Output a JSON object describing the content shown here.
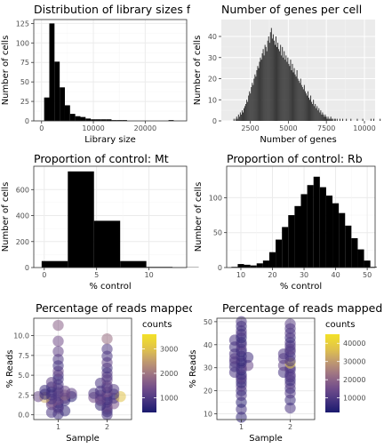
{
  "chart_data": [
    {
      "type": "bar",
      "title": "Distribution of library sizes for all",
      "xlabel": "Library size",
      "ylabel": "Number of cells",
      "theme": "bw",
      "xlim": [
        -1500,
        28000
      ],
      "ylim": [
        0,
        130
      ],
      "xticks": [
        0,
        10000,
        20000
      ],
      "yticks": [
        0,
        25,
        50,
        75,
        100,
        125
      ],
      "bin_width": 1000,
      "bin_start": 500,
      "values": [
        30,
        125,
        76,
        43,
        20,
        9,
        6,
        5,
        3,
        2,
        2,
        2,
        2,
        1,
        1,
        1,
        0,
        0,
        0,
        0,
        0,
        0,
        0,
        0,
        1
      ]
    },
    {
      "type": "bar",
      "title": "Number of genes per cell",
      "xlabel": "Number of genes",
      "ylabel": "Number of cells",
      "theme": "grey",
      "xlim": [
        600,
        10700
      ],
      "ylim": [
        0,
        48
      ],
      "xticks": [
        2500,
        5000,
        7500,
        10000
      ],
      "yticks": [
        0,
        10,
        20,
        30,
        40
      ],
      "bin_width": 60,
      "bin_start": 1400,
      "values": [
        1,
        0,
        1,
        2,
        1,
        3,
        2,
        4,
        3,
        5,
        4,
        6,
        7,
        8,
        10,
        9,
        12,
        14,
        13,
        16,
        18,
        17,
        20,
        22,
        21,
        24,
        26,
        25,
        28,
        30,
        29,
        32,
        34,
        31,
        36,
        35,
        33,
        38,
        40,
        37,
        42,
        44,
        39,
        41,
        38,
        36,
        40,
        35,
        37,
        34,
        33,
        36,
        31,
        35,
        30,
        33,
        29,
        31,
        28,
        30,
        27,
        26,
        29,
        24,
        27,
        23,
        25,
        22,
        21,
        24,
        20,
        19,
        18,
        20,
        17,
        16,
        15,
        17,
        14,
        13,
        12,
        14,
        11,
        10,
        12,
        9,
        8,
        10,
        7,
        8,
        6,
        7,
        5,
        6,
        4,
        5,
        3,
        4,
        3,
        2,
        3,
        2,
        1,
        2,
        1,
        1,
        2,
        1,
        1,
        0,
        1,
        1,
        0,
        1,
        0,
        0,
        1,
        0,
        0,
        1,
        0,
        0,
        0,
        1,
        0,
        0,
        0,
        0,
        1,
        0,
        0,
        0,
        0,
        0,
        0,
        1,
        0,
        0,
        0,
        0,
        0,
        1,
        0,
        0,
        0,
        0,
        0,
        0,
        0,
        0,
        1,
        0,
        0,
        1,
        0,
        0,
        0,
        0,
        0,
        0,
        1
      ]
    },
    {
      "type": "bar",
      "title": "Proportion of control: Mt",
      "xlabel": "% control",
      "ylabel": "Number of cells",
      "theme": "bw",
      "xlim": [
        -1,
        13.6
      ],
      "ylim": [
        0,
        780
      ],
      "xticks": [
        0,
        5,
        10
      ],
      "yticks": [
        0,
        200,
        400,
        600
      ],
      "bin_width": 2.5,
      "bin_start": -0.25,
      "values": [
        50,
        740,
        360,
        50,
        5,
        2
      ]
    },
    {
      "type": "bar",
      "title": "Proportion of control: Rb",
      "xlabel": "% control",
      "ylabel": "Number of cells",
      "theme": "bw",
      "xlim": [
        5.5,
        52.5
      ],
      "ylim": [
        0,
        145
      ],
      "xticks": [
        10,
        20,
        30,
        40,
        50
      ],
      "yticks": [
        0,
        50,
        100
      ],
      "bin_width": 2,
      "bin_start": 7,
      "values": [
        1,
        5,
        4,
        3,
        6,
        10,
        22,
        40,
        58,
        75,
        88,
        105,
        118,
        130,
        115,
        103,
        92,
        78,
        60,
        42,
        26,
        10,
        1
      ]
    },
    {
      "type": "scatter",
      "title": "Percentage of reads mapped to",
      "xlabel": "Sample",
      "ylabel": "% Reads",
      "theme": "bw",
      "categories": [
        "1",
        "2"
      ],
      "ylim": [
        -0.6,
        12.2
      ],
      "yticks": [
        0,
        2.5,
        5,
        7.5,
        10
      ],
      "ytick_labels": [
        "0.0",
        "2.5",
        "5.0",
        "7.5",
        "10.0"
      ],
      "legend": {
        "title": "counts",
        "ticks": [
          1000,
          2000,
          3000
        ],
        "range": [
          400,
          3600
        ]
      },
      "series": [
        {
          "name": "1",
          "values": [
            0.1,
            0.3,
            0.5,
            0.8,
            1.0,
            1.3,
            1.5,
            1.6,
            1.8,
            1.9,
            2.0,
            2.1,
            2.2,
            2.3,
            2.3,
            2.4,
            2.5,
            2.5,
            2.6,
            2.7,
            2.8,
            2.9,
            3.0,
            3.1,
            3.3,
            3.5,
            3.8,
            4.1,
            4.5,
            5.0,
            5.5,
            6.2,
            7.0,
            8.0,
            9.3,
            11.3
          ],
          "counts": [
            800,
            900,
            700,
            1100,
            900,
            1200,
            800,
            1600,
            700,
            1400,
            900,
            1100,
            2700,
            600,
            1300,
            1000,
            900,
            1800,
            700,
            1200,
            1000,
            900,
            1300,
            800,
            1100,
            700,
            1000,
            1200,
            800,
            900,
            1300,
            800,
            1000,
            1200,
            1400,
            1700
          ]
        },
        {
          "name": "2",
          "values": [
            0.0,
            0.4,
            0.7,
            1.0,
            1.2,
            1.4,
            1.6,
            1.8,
            1.9,
            2.0,
            2.1,
            2.2,
            2.3,
            2.4,
            2.5,
            2.6,
            2.7,
            2.9,
            3.0,
            3.2,
            3.4,
            3.7,
            4.0,
            4.4,
            4.8,
            5.3,
            5.9,
            6.6,
            7.4,
            8.3,
            9.6
          ],
          "counts": [
            900,
            800,
            1000,
            1200,
            700,
            1500,
            900,
            1100,
            800,
            1300,
            1000,
            1400,
            3000,
            900,
            1200,
            800,
            1000,
            1500,
            900,
            1100,
            800,
            1200,
            900,
            1300,
            1000,
            1100,
            800,
            1200,
            900,
            1000,
            1900
          ]
        }
      ]
    },
    {
      "type": "scatter",
      "title": "Percentage of reads mapped to",
      "xlabel": "Sample",
      "ylabel": "% Reads",
      "theme": "bw",
      "categories": [
        "1",
        "2"
      ],
      "ylim": [
        7.5,
        51.5
      ],
      "yticks": [
        10,
        20,
        30,
        40,
        50
      ],
      "ytick_labels": [
        "10",
        "20",
        "30",
        "40",
        "50"
      ],
      "legend": {
        "title": "counts",
        "ticks": [
          10000,
          20000,
          30000,
          40000
        ],
        "range": [
          2000,
          45000
        ]
      },
      "series": [
        {
          "name": "1",
          "values": [
            8.5,
            12,
            15,
            18,
            20,
            22,
            23.5,
            25,
            26,
            27,
            28,
            29,
            30,
            30.5,
            31,
            32,
            32.5,
            33,
            34,
            34.5,
            35,
            36,
            37,
            38,
            39,
            40,
            41,
            42,
            43,
            44.5,
            46,
            48,
            50
          ],
          "counts": [
            6000,
            8000,
            5000,
            9000,
            7000,
            11000,
            6000,
            8000,
            12000,
            7000,
            9000,
            6000,
            10000,
            8000,
            14000,
            7000,
            9000,
            6000,
            11000,
            8000,
            7000,
            10000,
            6000,
            9000,
            8000,
            12000,
            7000,
            9000,
            6000,
            8000,
            10000,
            7000,
            9000
          ]
        },
        {
          "name": "2",
          "values": [
            12.5,
            16,
            19,
            21,
            23,
            24.5,
            26,
            27,
            28,
            29,
            30,
            31,
            32,
            33,
            34,
            35,
            36,
            37,
            38,
            39.5,
            41,
            43,
            45,
            47,
            49
          ],
          "counts": [
            9000,
            7000,
            10000,
            8000,
            12000,
            7000,
            9000,
            11000,
            8000,
            10000,
            9000,
            13000,
            38000,
            8000,
            11000,
            9000,
            10000,
            8000,
            12000,
            9000,
            10000,
            7000,
            11000,
            9000,
            12000
          ]
        }
      ]
    }
  ]
}
